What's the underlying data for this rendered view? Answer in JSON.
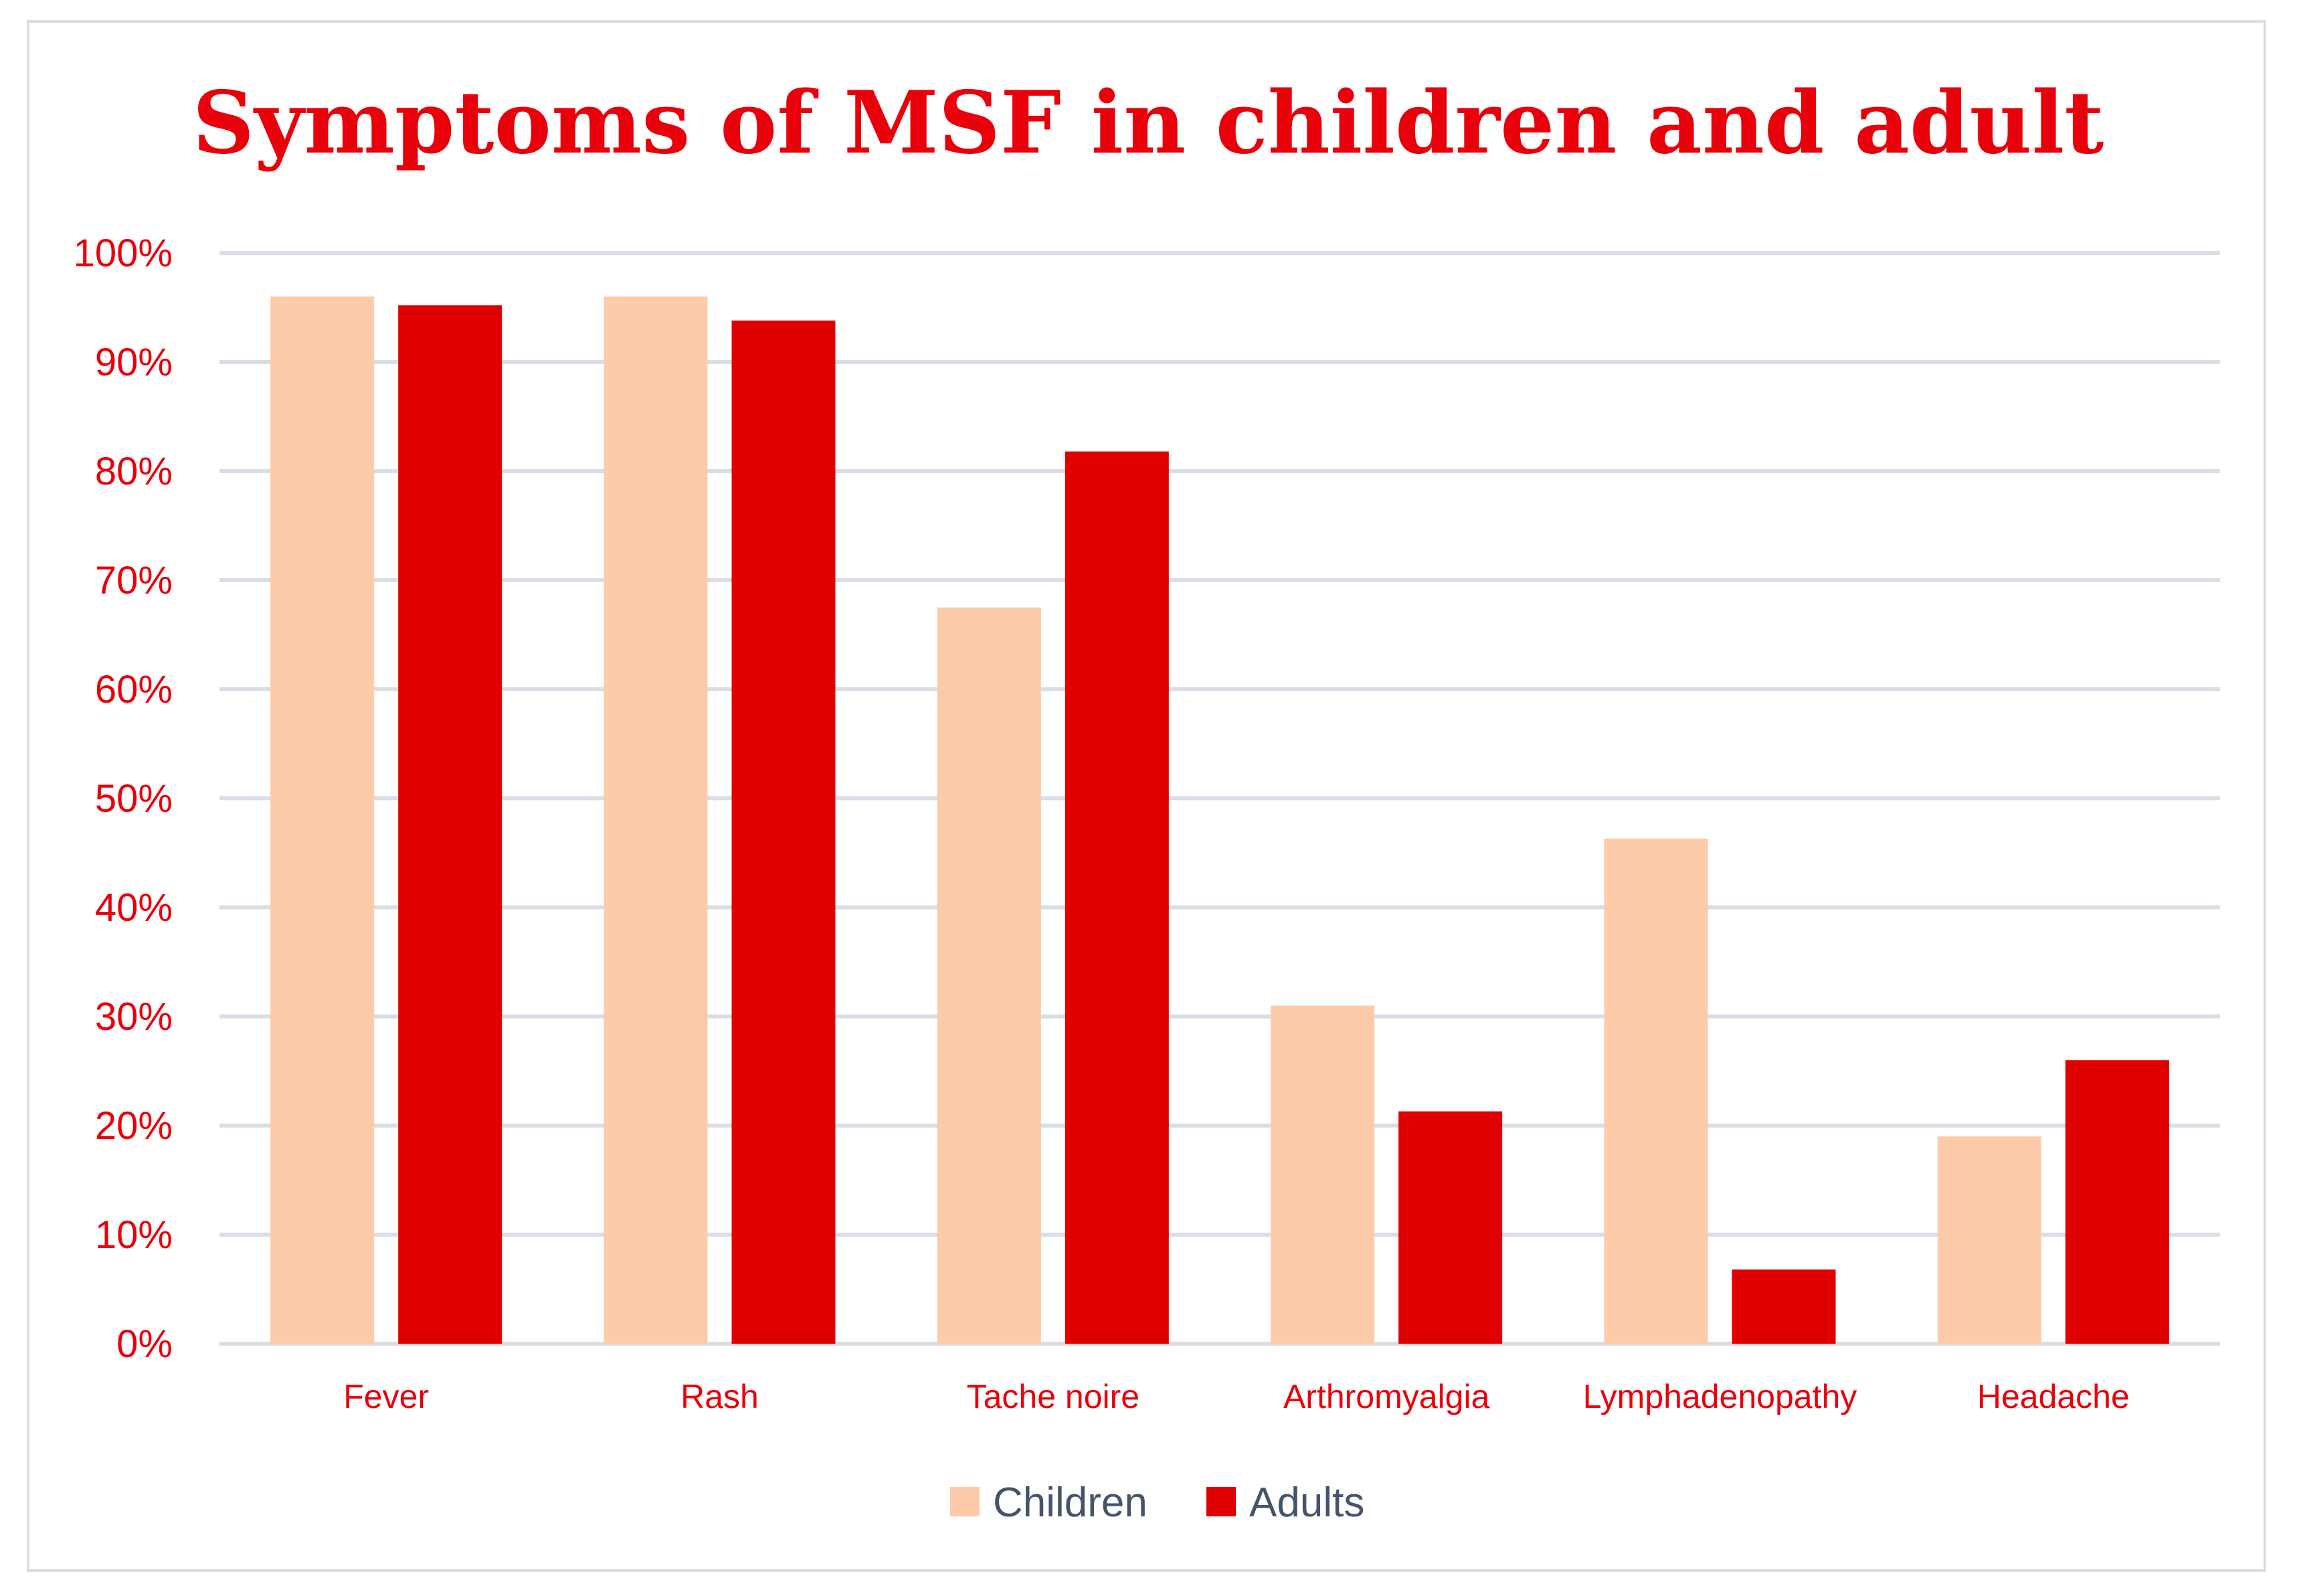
{
  "chart_data": {
    "type": "bar",
    "title": "Symptoms of MSF in children and adult",
    "xlabel": "",
    "ylabel": "",
    "ylim": [
      0,
      100
    ],
    "y_ticks": [
      "0%",
      "10%",
      "20%",
      "30%",
      "40%",
      "50%",
      "60%",
      "70%",
      "80%",
      "90%",
      "100%"
    ],
    "grid": true,
    "legend_position": "bottom",
    "categories": [
      "Fever",
      "Rash",
      "Tache noire",
      "Arthromyalgia",
      "Lymphadenopathy",
      "Headache"
    ],
    "series": [
      {
        "name": "Children",
        "color": "#fdcbaa",
        "values": [
          96,
          96,
          67.5,
          31,
          46.3,
          19
        ]
      },
      {
        "name": "Adults",
        "color": "#e00000",
        "values": [
          95.2,
          93.8,
          81.8,
          21.3,
          6.8,
          26
        ]
      }
    ]
  }
}
